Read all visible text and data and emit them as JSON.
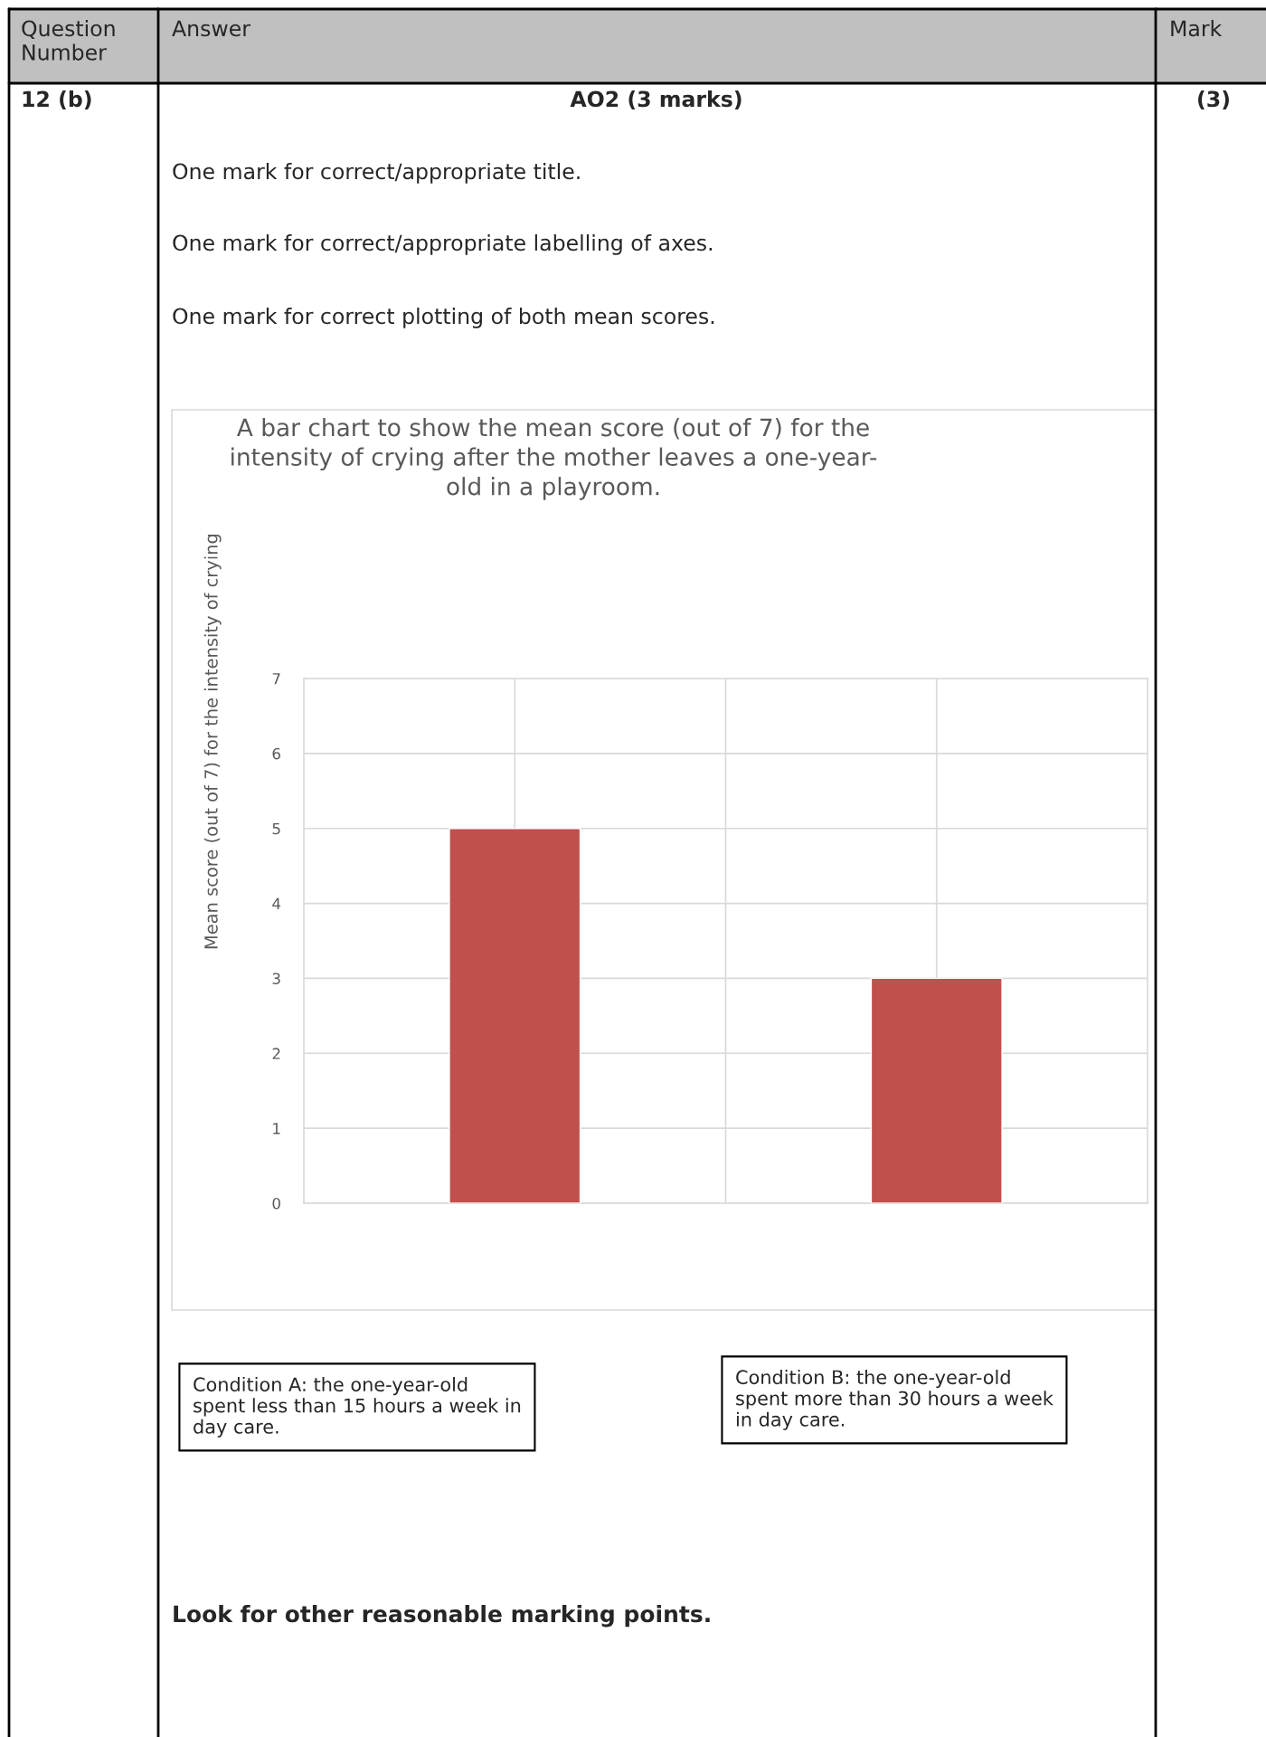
{
  "chart_data": {
    "type": "bar",
    "title": "A bar chart to show the mean score (out of 7) for the\nintensity of crying after the mother leaves a one-year-\nold in a playroom.",
    "ylabel": "Mean score (out of 7) for the intensity of crying",
    "categories": [
      null,
      null
    ],
    "values": [
      5,
      3
    ],
    "color": "#c0504d",
    "ylim": [
      0,
      7
    ],
    "yticks": [
      0,
      1,
      2,
      3,
      4,
      5,
      6,
      7
    ],
    "grid": true,
    "annotations": [
      "Question\nNumber",
      "Answer",
      "Mark",
      "12 (b)",
      "AO2 (3 marks)",
      "(3)",
      "One mark for correct/appropriate title.",
      "One mark for correct/appropriate labelling of axes.",
      "One mark for correct plotting of both mean scores.",
      "Condition A: the one-year-old\nspent less than 15 hours a week in\nday care.",
      "Condition B: the one-year-old\nspent more than 30 hours a week\nin day care.",
      "Look for other reasonable marking points."
    ]
  }
}
